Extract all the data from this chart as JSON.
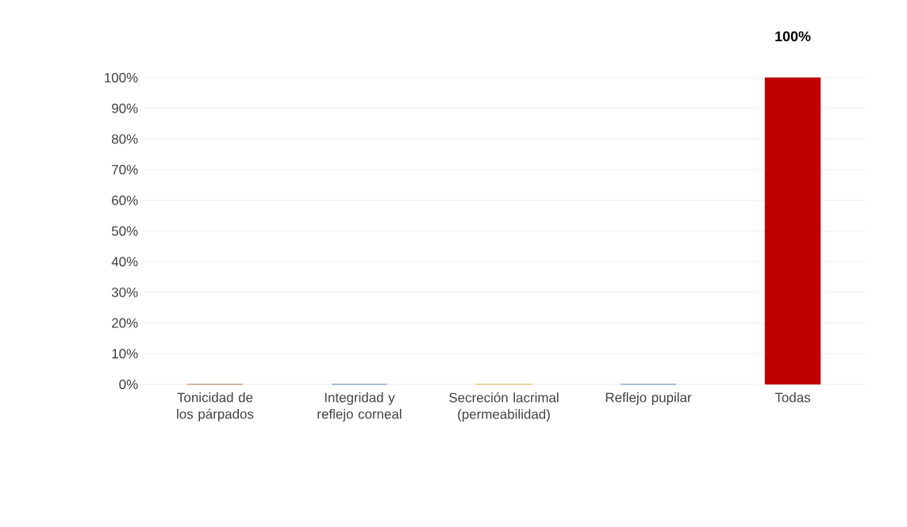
{
  "chart_data": {
    "type": "bar",
    "categories": [
      "Tonicidad de los párpados",
      "Integridad y reflejo corneal",
      "Secreción lacrimal (permeabilidad)",
      "Reflejo pupilar",
      "Todas"
    ],
    "values": [
      0,
      0,
      0,
      0,
      100
    ],
    "colors": [
      "#9c4a0f",
      "#2f5597",
      "#c59d00",
      "#2f5597",
      "#c00000"
    ],
    "value_labels": [
      null,
      null,
      null,
      null,
      "100%"
    ],
    "ylim": [
      0,
      100
    ],
    "yticks": [
      {
        "value": 0,
        "label": "0%"
      },
      {
        "value": 10,
        "label": "10%"
      },
      {
        "value": 20,
        "label": "20%"
      },
      {
        "value": 30,
        "label": "30%"
      },
      {
        "value": 40,
        "label": "40%"
      },
      {
        "value": 50,
        "label": "50%"
      },
      {
        "value": 60,
        "label": "60%"
      },
      {
        "value": 70,
        "label": "70%"
      },
      {
        "value": 80,
        "label": "80%"
      },
      {
        "value": 90,
        "label": "90%"
      },
      {
        "value": 100,
        "label": "100%"
      }
    ],
    "grid": "y"
  }
}
